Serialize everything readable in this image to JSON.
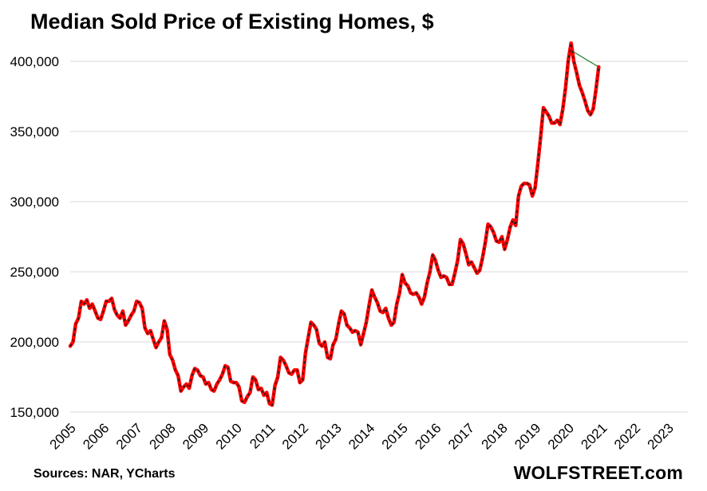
{
  "chart_data": {
    "type": "line",
    "title": "Median Sold Price of Existing Homes, $",
    "xlabel": "",
    "ylabel": "",
    "ylim": [
      150000,
      400000
    ],
    "yticks": [
      "150,000",
      "200,000",
      "250,000",
      "300,000",
      "350,000",
      "400,000"
    ],
    "ytick_values": [
      150000,
      200000,
      250000,
      300000,
      350000,
      400000
    ],
    "xlim": [
      2005,
      2023.6
    ],
    "xticks": [
      "2005",
      "2006",
      "2007",
      "2008",
      "2009",
      "2010",
      "2011",
      "2012",
      "2013",
      "2014",
      "2015",
      "2016",
      "2017",
      "2018",
      "2019",
      "2020",
      "2021",
      "2022",
      "2023"
    ],
    "grid": true,
    "series": [
      {
        "color": "#ff0000",
        "x_start": 2005.0,
        "x_step_months": 1,
        "values": [
          197000,
          200000,
          213000,
          217000,
          229000,
          227000,
          230000,
          224000,
          227000,
          222000,
          217000,
          216000,
          222000,
          229000,
          229000,
          231000,
          223000,
          219000,
          217000,
          222000,
          212000,
          215000,
          219000,
          222000,
          229000,
          228000,
          224000,
          210000,
          206000,
          208000,
          202000,
          196000,
          200000,
          203000,
          215000,
          209000,
          191000,
          187000,
          180000,
          176000,
          165000,
          168000,
          170000,
          167000,
          176000,
          181000,
          180000,
          176000,
          175000,
          170000,
          171000,
          166000,
          165000,
          170000,
          173000,
          177000,
          183000,
          182000,
          172000,
          171000,
          171000,
          168000,
          158000,
          157000,
          161000,
          164000,
          175000,
          173000,
          166000,
          167000,
          162000,
          164000,
          156000,
          155000,
          169000,
          175000,
          189000,
          187000,
          183000,
          178000,
          177000,
          180000,
          180000,
          171000,
          173000,
          192000,
          203000,
          214000,
          212000,
          209000,
          199000,
          197000,
          200000,
          189000,
          188000,
          198000,
          202000,
          213000,
          222000,
          220000,
          212000,
          210000,
          207000,
          208000,
          207000,
          198000,
          206000,
          214000,
          226000,
          237000,
          232000,
          228000,
          222000,
          221000,
          224000,
          217000,
          212000,
          214000,
          227000,
          235000,
          248000,
          242000,
          240000,
          235000,
          234000,
          235000,
          232000,
          227000,
          232000,
          242000,
          250000,
          262000,
          258000,
          251000,
          246000,
          247000,
          246000,
          241000,
          241000,
          249000,
          258000,
          273000,
          270000,
          263000,
          255000,
          257000,
          253000,
          249000,
          251000,
          260000,
          271000,
          284000,
          282000,
          278000,
          272000,
          271000,
          275000,
          266000,
          273000,
          282000,
          287000,
          283000,
          304000,
          311000,
          313000,
          313000,
          312000,
          304000,
          310000,
          327000,
          346000,
          367000,
          364000,
          361000,
          356000,
          356000,
          358000,
          355000,
          366000,
          381000,
          401000,
          413000,
          400000,
          392000,
          383000,
          378000,
          372000,
          365000,
          362000,
          366000,
          380000,
          396000
        ]
      }
    ],
    "trend_segment": {
      "color": "#2e8b3a",
      "from_value": 409000,
      "to_value": 396000
    },
    "source": "Sources: NAR, YCharts",
    "brand": "WOLFSTREET.com"
  }
}
